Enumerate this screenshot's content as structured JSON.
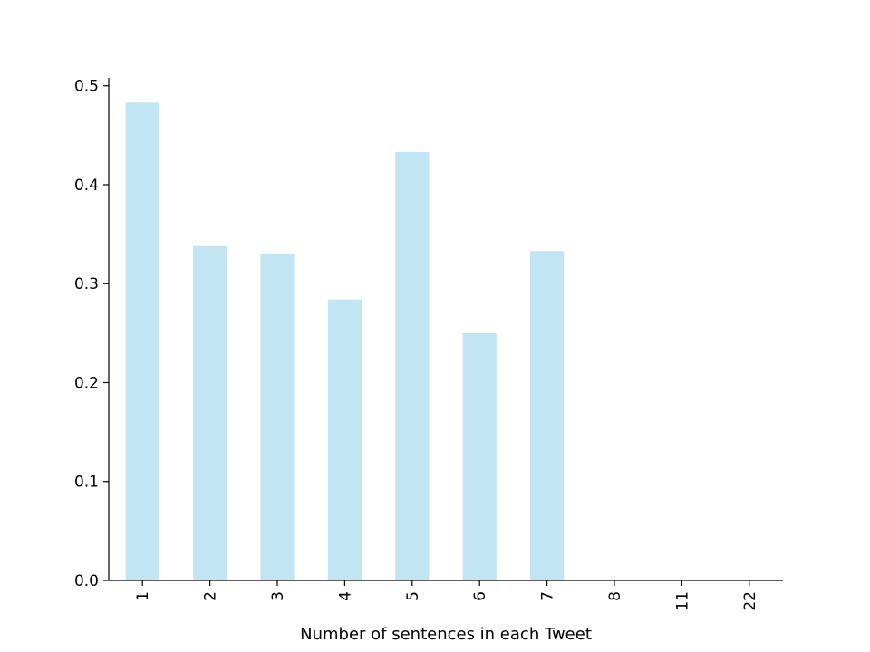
{
  "chart_data": {
    "type": "bar",
    "title": "",
    "xlabel": "Number of sentences in each Tweet",
    "ylabel": "",
    "categories": [
      "1",
      "2",
      "3",
      "4",
      "5",
      "6",
      "7",
      "8",
      "11",
      "22"
    ],
    "values": [
      0.483,
      0.338,
      0.33,
      0.284,
      0.433,
      0.25,
      0.333,
      0.0,
      0.0,
      0.0
    ],
    "ylim": [
      0,
      0.508
    ],
    "yticks": [
      0.0,
      0.1,
      0.2,
      0.3,
      0.4,
      0.5
    ],
    "ytick_labels": [
      "0.0",
      "0.1",
      "0.2",
      "0.3",
      "0.4",
      "0.5"
    ],
    "bar_color": "#c2e5f3",
    "grid": false,
    "legend": "none"
  }
}
